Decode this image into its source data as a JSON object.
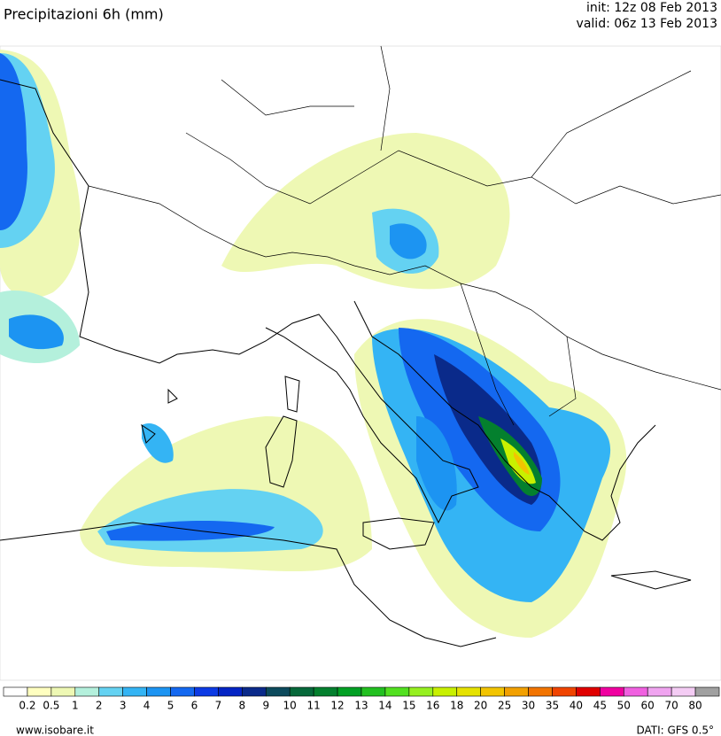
{
  "header": {
    "title": "Precipitazioni 6h (mm)",
    "init": "init: 12z 08 Feb 2013",
    "valid": "valid: 06z 13 Feb 2013"
  },
  "legend": {
    "labels": [
      0.2,
      0.5,
      1,
      2,
      3,
      4,
      5,
      6,
      7,
      8,
      9,
      10,
      11,
      12,
      13,
      14,
      15,
      16,
      18,
      20,
      25,
      30,
      35,
      40,
      45,
      50,
      60,
      70,
      80
    ],
    "colors": [
      "#ffffff",
      "#ffffc0",
      "#eef8b4",
      "#b4f0dc",
      "#64d2f2",
      "#34b4f4",
      "#1c94f2",
      "#1468f0",
      "#0c3ae4",
      "#0424c4",
      "#0a2a8a",
      "#0c4a5c",
      "#06683a",
      "#04802e",
      "#02a024",
      "#22c020",
      "#52e020",
      "#96f020",
      "#c8f000",
      "#e6e200",
      "#f2c400",
      "#f2a000",
      "#f27400",
      "#f04400",
      "#e00000",
      "#f000a0",
      "#f060e0",
      "#f0a4f0",
      "#f4ccf4",
      "#a0a0a0"
    ]
  },
  "footer": {
    "site": "www.isobare.it",
    "source": "DATI: GFS 0.5°"
  }
}
